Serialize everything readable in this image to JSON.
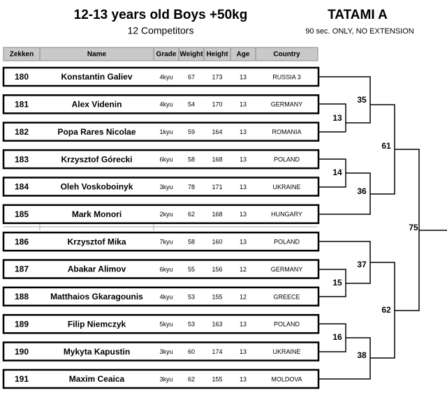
{
  "header": {
    "title": "12-13 years old  Boys +50kg",
    "subtitle": "12 Competitors",
    "tatami": "TATAMI  A",
    "rule": "90 sec. ONLY, NO EXTENSION"
  },
  "table": {
    "columns": [
      "Zekken",
      "Name",
      "Grade",
      "Weight",
      "Height",
      "Age",
      "Country"
    ],
    "rows": [
      [
        180,
        "Konstantin Galiev",
        "4kyu",
        67,
        173,
        13,
        "RUSSIA 3"
      ],
      [
        181,
        "Alex Videnin",
        "4kyu",
        54,
        170,
        13,
        "GERMANY"
      ],
      [
        182,
        "Popa Rares Nicolae",
        "1kyu",
        59,
        164,
        13,
        "ROMANIA"
      ],
      [
        183,
        "Krzysztof  Górecki",
        "6kyu",
        58,
        168,
        13,
        "POLAND"
      ],
      [
        184,
        "Oleh Voskoboinyk",
        "3kyu",
        78,
        171,
        13,
        "UKRAINE"
      ],
      [
        185,
        "Mark  Monori",
        "2kyu",
        62,
        168,
        13,
        "HUNGARY"
      ],
      [
        186,
        "Krzysztof Mika",
        "7kyu",
        58,
        160,
        13,
        "POLAND"
      ],
      [
        187,
        "Abakar Alimov",
        "6kyu",
        55,
        156,
        12,
        "GERMANY"
      ],
      [
        188,
        "Matthaios Gkaragounis",
        "4kyu",
        53,
        155,
        12,
        "GREECE"
      ],
      [
        189,
        "Filip Niemczyk",
        "5kyu",
        53,
        163,
        13,
        "POLAND"
      ],
      [
        190,
        "Mykyta  Kapustin",
        "3kyu",
        60,
        174,
        13,
        "UKRAINE"
      ],
      [
        191,
        "Maxim Ceaica",
        "3kyu",
        62,
        155,
        13,
        "MOLDOVA"
      ]
    ]
  },
  "bracket": {
    "matches": [
      13,
      35,
      14,
      36,
      61,
      15,
      37,
      16,
      38,
      62,
      75
    ]
  }
}
